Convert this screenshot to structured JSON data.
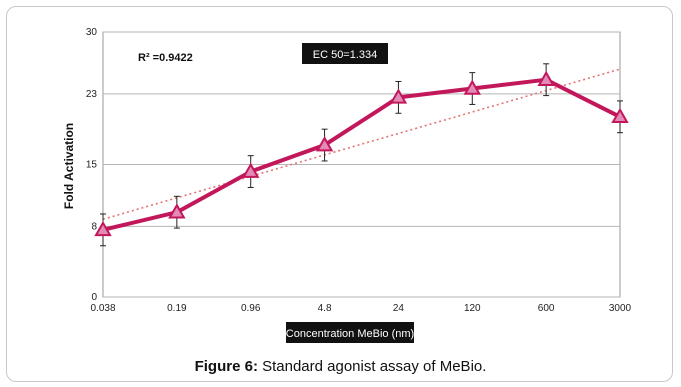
{
  "caption": {
    "label": "Figure 6:",
    "text": "Standard agonist assay of MeBio."
  },
  "chart_data": {
    "type": "line",
    "title": "",
    "xlabel": "Concentration MeBio (nm)",
    "ylabel": "Fold Activation",
    "categories": [
      "0.038",
      "0.19",
      "0.96",
      "4.8",
      "24",
      "120",
      "600",
      "3000"
    ],
    "y_ticks": [
      "0",
      "8",
      "15",
      "23",
      "30"
    ],
    "ylim": [
      0,
      30
    ],
    "grid": true,
    "series": [
      {
        "values": [
          7.6,
          9.6,
          14.2,
          17.2,
          22.6,
          23.6,
          24.6,
          20.4
        ],
        "errors": [
          1.8,
          1.8,
          1.8,
          1.8,
          1.8,
          1.8,
          1.8,
          1.8
        ],
        "color": "#c2185b",
        "marker": "triangle"
      }
    ],
    "trendline": {
      "start": 8.8,
      "end": 25.8,
      "color": "#e57373",
      "style": "dotted"
    },
    "annotations": {
      "r2": "R² =0.9422",
      "ec50": "EC 50=1.334"
    }
  }
}
